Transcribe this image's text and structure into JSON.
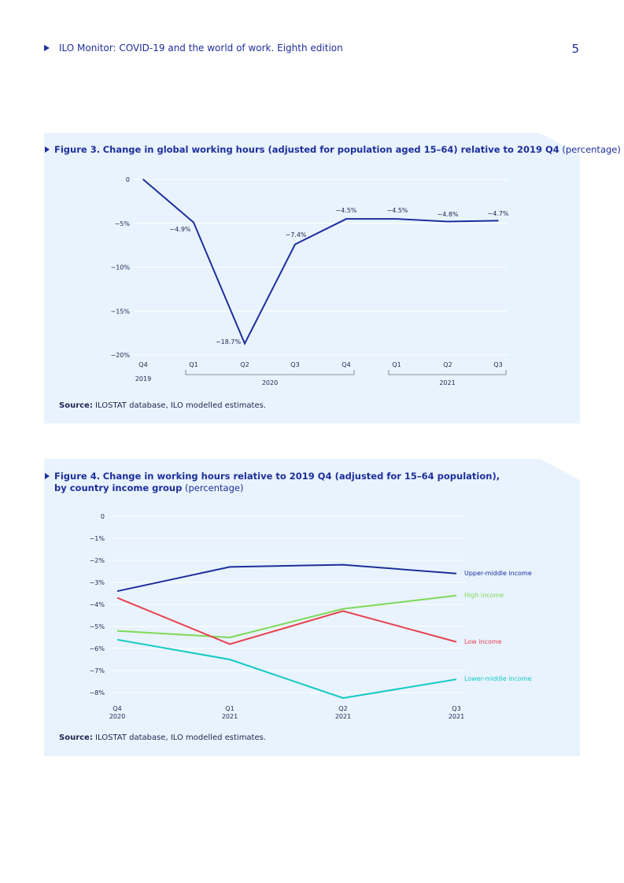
{
  "header": {
    "title": "ILO Monitor: COVID-19 and the world of work. Eighth edition",
    "page_number": "5"
  },
  "figure3": {
    "label": "Figure 3.",
    "title_bold": "Change in global working hours (adjusted for population aged 15–64) relative to 2019 Q4",
    "title_rest": "(percentage)",
    "source_label": "Source:",
    "source_text": "ILOSTAT database, ILO modelled estimates."
  },
  "figure4": {
    "label": "Figure 4.",
    "title_bold_1": "Change in working hours relative to 2019 Q4 (adjusted for 15–64 population),",
    "title_bold_2": "by country income group",
    "title_rest": "(percentage)",
    "source_label": "Source:",
    "source_text": "ILOSTAT database, ILO modelled estimates."
  },
  "chart_data": [
    {
      "type": "line",
      "title": "Change in global working hours (adjusted for population aged 15–64) relative to 2019 Q4",
      "categories": [
        "Q4",
        "Q1",
        "Q2",
        "Q3",
        "Q4",
        "Q1",
        "Q2",
        "Q3"
      ],
      "year_groups": [
        {
          "label": "2019",
          "from": 0,
          "to": 0
        },
        {
          "label": "2020",
          "from": 1,
          "to": 4
        },
        {
          "label": "2021",
          "from": 5,
          "to": 7
        }
      ],
      "values": [
        0,
        -4.9,
        -18.7,
        -7.4,
        -4.5,
        -4.5,
        -4.8,
        -4.7
      ],
      "data_labels": [
        "",
        "−4.9%",
        "−18.7%",
        "−7.4%",
        "−4.5%",
        "−4.5%",
        "−4.8%",
        "−4.7%"
      ],
      "y_ticks": [
        0,
        -5,
        -10,
        -15,
        -20
      ],
      "y_tick_labels": [
        "0",
        "−5%",
        "−10%",
        "−15%",
        "−20%"
      ],
      "ylim": [
        -20,
        0
      ],
      "grid": true,
      "colors": {
        "line": "#1e2f9b",
        "grid": "#ffffff"
      }
    },
    {
      "type": "line",
      "title": "Change in working hours relative to 2019 Q4 (adjusted for 15–64 population), by country income group",
      "categories": [
        [
          "Q4",
          "2020"
        ],
        [
          "Q1",
          "2021"
        ],
        [
          "Q2",
          "2021"
        ],
        [
          "Q3",
          "2021"
        ]
      ],
      "series": [
        {
          "name": "Upper-middle income",
          "values": [
            -3.4,
            -2.3,
            -2.2,
            -2.6
          ],
          "color": "#1e2f9b"
        },
        {
          "name": "High income",
          "values": [
            -5.2,
            -5.5,
            -4.2,
            -3.6
          ],
          "color": "#7ed957"
        },
        {
          "name": "Low income",
          "values": [
            -3.7,
            -5.8,
            -4.3,
            -5.7
          ],
          "color": "#e8414e"
        },
        {
          "name": "Lower-middle income",
          "values": [
            -5.6,
            -6.5,
            -8.25,
            -7.4
          ],
          "color": "#12c9c3"
        }
      ],
      "y_ticks": [
        0,
        -1,
        -2,
        -3,
        -4,
        -5,
        -6,
        -7,
        -8
      ],
      "y_tick_labels": [
        "0",
        "−1%",
        "−2%",
        "−3%",
        "−4%",
        "−5%",
        "−6%",
        "−7%",
        "−8%"
      ],
      "ylim": [
        -8,
        0
      ],
      "grid": true,
      "legend": "right, labels at line ends"
    }
  ]
}
